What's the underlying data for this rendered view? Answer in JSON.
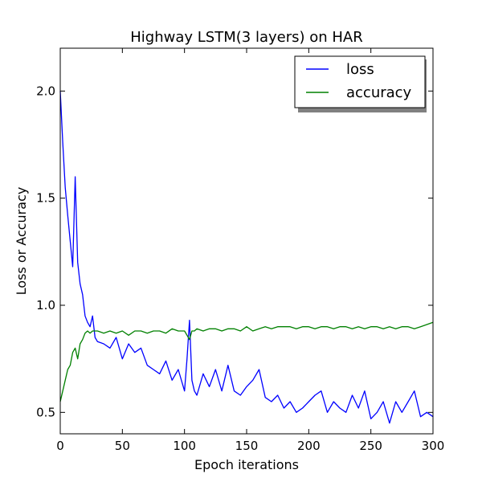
{
  "chart_data": {
    "type": "line",
    "title": "Highway LSTM(3 layers) on HAR",
    "xlabel": "Epoch iterations",
    "ylabel": "Loss or Accuracy",
    "xlim": [
      0,
      300
    ],
    "ylim": [
      0.4,
      2.2
    ],
    "xticks": [
      "0",
      "50",
      "100",
      "150",
      "200",
      "250",
      "300"
    ],
    "yticks": [
      "0.5",
      "1.0",
      "1.5",
      "2.0"
    ],
    "grid": false,
    "legend_position": "top-right",
    "x": [
      0,
      2,
      4,
      6,
      8,
      10,
      12,
      14,
      16,
      18,
      20,
      22,
      24,
      26,
      28,
      30,
      35,
      40,
      45,
      50,
      55,
      60,
      65,
      70,
      75,
      80,
      85,
      90,
      95,
      100,
      102,
      104,
      106,
      108,
      110,
      115,
      120,
      125,
      130,
      135,
      140,
      145,
      150,
      155,
      160,
      165,
      170,
      175,
      180,
      185,
      190,
      195,
      200,
      205,
      210,
      215,
      220,
      225,
      230,
      235,
      240,
      245,
      250,
      255,
      260,
      265,
      270,
      275,
      280,
      285,
      290,
      295,
      300
    ],
    "series": [
      {
        "name": "loss",
        "color": "#0000ff",
        "values": [
          2.0,
          1.76,
          1.55,
          1.42,
          1.3,
          1.18,
          1.6,
          1.2,
          1.1,
          1.05,
          0.95,
          0.92,
          0.9,
          0.95,
          0.85,
          0.83,
          0.82,
          0.8,
          0.85,
          0.75,
          0.82,
          0.78,
          0.8,
          0.72,
          0.7,
          0.68,
          0.74,
          0.65,
          0.7,
          0.6,
          0.75,
          0.93,
          0.65,
          0.6,
          0.58,
          0.68,
          0.62,
          0.7,
          0.6,
          0.72,
          0.6,
          0.58,
          0.62,
          0.65,
          0.7,
          0.57,
          0.55,
          0.58,
          0.52,
          0.55,
          0.5,
          0.52,
          0.55,
          0.58,
          0.6,
          0.5,
          0.55,
          0.52,
          0.5,
          0.58,
          0.52,
          0.6,
          0.47,
          0.5,
          0.55,
          0.45,
          0.55,
          0.5,
          0.55,
          0.6,
          0.48,
          0.5,
          0.48
        ]
      },
      {
        "name": "accuracy",
        "color": "#008000",
        "values": [
          0.55,
          0.6,
          0.65,
          0.7,
          0.72,
          0.78,
          0.8,
          0.75,
          0.82,
          0.84,
          0.87,
          0.88,
          0.87,
          0.88,
          0.88,
          0.88,
          0.87,
          0.88,
          0.87,
          0.88,
          0.86,
          0.88,
          0.88,
          0.87,
          0.88,
          0.88,
          0.87,
          0.89,
          0.88,
          0.88,
          0.86,
          0.84,
          0.88,
          0.88,
          0.89,
          0.88,
          0.89,
          0.89,
          0.88,
          0.89,
          0.89,
          0.88,
          0.9,
          0.88,
          0.89,
          0.9,
          0.89,
          0.9,
          0.9,
          0.9,
          0.89,
          0.9,
          0.9,
          0.89,
          0.9,
          0.9,
          0.89,
          0.9,
          0.9,
          0.89,
          0.9,
          0.89,
          0.9,
          0.9,
          0.89,
          0.9,
          0.89,
          0.9,
          0.9,
          0.89,
          0.9,
          0.91,
          0.92
        ]
      }
    ]
  }
}
